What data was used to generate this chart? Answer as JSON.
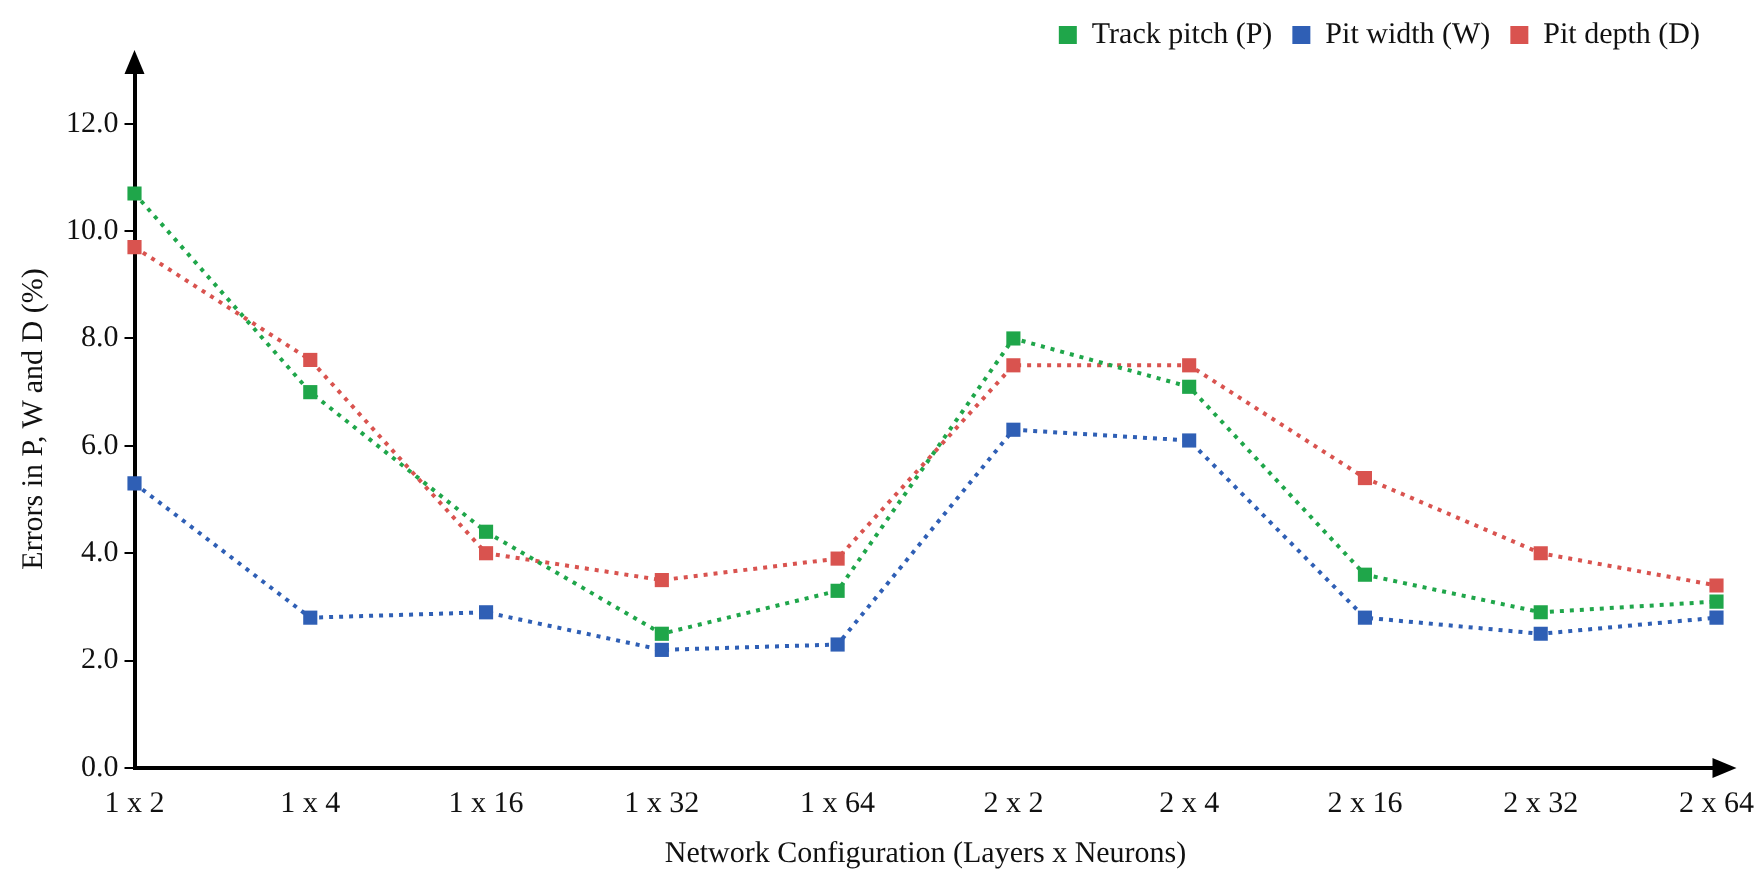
{
  "chart_data": {
    "type": "line",
    "xlabel": "Network Configuration (Layers x Neurons)",
    "ylabel": "Errors in P, W and D (%)",
    "categories": [
      "1 x 2",
      "1 x 4",
      "1 x 16",
      "1 x 32",
      "1 x 64",
      "2 x 2",
      "2 x 4",
      "2 x 16",
      "2 x 32",
      "2 x 64"
    ],
    "series": [
      {
        "name": "Track pitch (P)",
        "color": "#1fa64a",
        "values": [
          10.7,
          7.0,
          4.4,
          2.5,
          3.3,
          8.0,
          7.1,
          3.6,
          2.9,
          3.1
        ]
      },
      {
        "name": "Pit width (W)",
        "color": "#2f5fb5",
        "values": [
          5.3,
          2.8,
          2.9,
          2.2,
          2.3,
          6.3,
          6.1,
          2.8,
          2.5,
          2.8
        ]
      },
      {
        "name": "Pit depth (D)",
        "color": "#d9534f",
        "values": [
          9.7,
          7.6,
          4.0,
          3.5,
          3.9,
          7.5,
          7.5,
          5.4,
          4.0,
          3.4
        ]
      }
    ],
    "ylim": [
      0,
      13
    ],
    "yticks": [
      {
        "value": 0,
        "label": "0.0"
      },
      {
        "value": 2,
        "label": "2.0"
      },
      {
        "value": 4,
        "label": "4.0"
      },
      {
        "value": 6,
        "label": "6.0"
      },
      {
        "value": 8,
        "label": "8.0"
      },
      {
        "value": 10,
        "label": "10.0"
      },
      {
        "value": 12,
        "label": "12.0"
      }
    ],
    "grid": false,
    "legend": "top right",
    "marker": "square",
    "line_style": "dotted"
  }
}
